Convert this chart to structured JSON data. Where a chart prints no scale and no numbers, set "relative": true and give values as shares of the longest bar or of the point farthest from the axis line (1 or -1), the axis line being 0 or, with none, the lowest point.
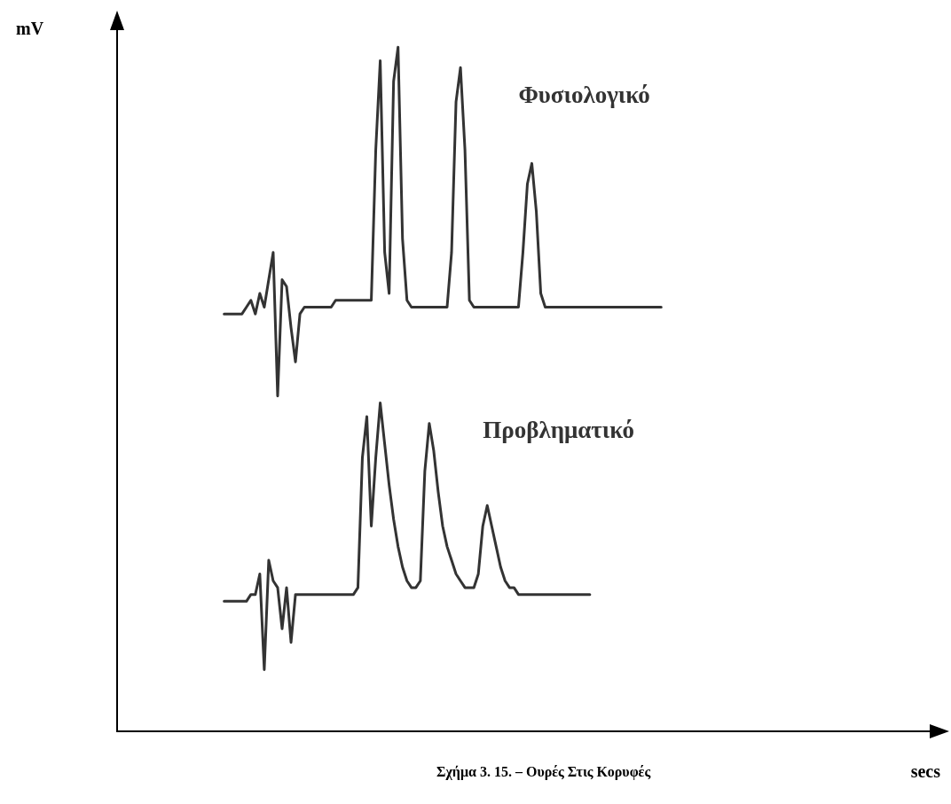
{
  "chart_data": {
    "type": "line",
    "relative": true,
    "xlabel": "secs",
    "ylabel": "mV",
    "tick_labels": false,
    "grid": false,
    "legend": false,
    "line_style": "solid",
    "annotations": [
      "Σχήμα 3. 15. – Ουρές Στις Κορυφές"
    ],
    "categories": [
      null,
      null,
      null,
      null,
      null,
      null,
      null,
      null,
      null,
      null,
      null,
      null,
      null,
      null,
      null,
      null,
      null,
      null,
      null,
      null,
      null,
      null,
      null,
      null,
      null,
      null,
      null,
      null,
      null,
      null,
      null,
      null,
      null,
      null,
      null,
      null,
      null,
      null,
      null,
      null,
      null,
      null,
      null,
      null,
      null,
      null,
      null,
      null,
      null,
      null,
      null,
      null,
      null,
      null,
      null,
      null,
      null,
      null,
      null,
      null,
      null,
      null,
      null,
      null,
      null,
      null,
      null,
      null,
      null,
      null,
      null,
      null,
      null,
      null,
      null,
      null,
      null,
      null,
      null,
      null,
      null,
      null,
      null,
      null,
      null,
      null,
      null,
      null,
      null,
      null,
      null,
      null,
      null,
      null,
      null,
      null,
      null,
      null,
      null,
      null,
      null,
      null,
      null,
      null,
      null,
      null,
      null,
      null,
      null,
      null,
      null,
      null,
      null,
      null,
      null,
      null,
      null,
      null,
      null,
      null,
      null,
      null,
      null,
      null,
      null,
      null,
      null,
      null,
      null,
      null,
      null,
      null,
      null,
      null,
      null,
      null,
      null,
      null,
      null,
      null,
      null,
      null,
      null,
      null,
      null,
      null,
      null,
      null,
      null,
      null,
      null,
      null,
      null,
      null,
      null,
      null,
      null,
      null,
      null,
      null,
      null,
      null,
      null,
      null,
      null,
      null,
      null,
      null,
      null,
      null,
      null,
      null,
      null,
      null,
      null,
      null,
      null,
      null,
      null,
      null,
      null,
      null,
      null,
      null,
      null,
      null
    ],
    "series": [
      {
        "name": "Φυσιολογικό",
        "color": "#333333",
        "values": [
          null,
          null,
          null,
          null,
          null,
          null,
          null,
          null,
          null,
          null,
          null,
          null,
          null,
          null,
          null,
          null,
          null,
          null,
          null,
          null,
          null,
          null,
          null,
          null,
          0.61,
          0.61,
          0.61,
          0.61,
          0.61,
          0.62,
          0.63,
          0.61,
          0.64,
          0.62,
          0.66,
          0.7,
          0.49,
          0.66,
          0.65,
          0.59,
          0.54,
          0.61,
          0.62,
          0.62,
          0.62,
          0.62,
          0.62,
          0.62,
          0.62,
          0.63,
          0.63,
          0.63,
          0.63,
          0.63,
          0.63,
          0.63,
          0.63,
          0.63,
          0.85,
          0.98,
          0.7,
          0.64,
          0.95,
          1.0,
          0.72,
          0.63,
          0.62,
          0.62,
          0.62,
          0.62,
          0.62,
          0.62,
          0.62,
          0.62,
          0.62,
          0.7,
          0.92,
          0.97,
          0.85,
          0.63,
          0.62,
          0.62,
          0.62,
          0.62,
          0.62,
          0.62,
          0.62,
          0.62,
          0.62,
          0.62,
          0.62,
          0.7,
          0.8,
          0.83,
          0.76,
          0.64,
          0.62,
          0.62,
          0.62,
          0.62,
          0.62,
          0.62,
          0.62,
          0.62,
          0.62,
          0.62,
          0.62,
          0.62,
          0.62,
          0.62,
          0.62,
          0.62,
          0.62,
          0.62,
          0.62,
          0.62,
          0.62,
          0.62,
          0.62,
          0.62,
          0.62,
          0.62,
          0.62,
          null,
          null,
          null,
          null,
          null,
          null,
          null,
          null,
          null,
          null,
          null,
          null,
          null,
          null,
          null,
          null,
          null,
          null,
          null,
          null,
          null,
          null,
          null,
          null,
          null,
          null,
          null,
          null,
          null,
          null,
          null,
          null,
          null,
          null,
          null,
          null,
          null,
          null,
          null,
          null,
          null,
          null,
          null,
          null,
          null,
          null,
          null,
          null,
          null,
          null,
          null,
          null,
          null,
          null,
          null,
          null,
          null,
          null,
          null,
          null,
          null,
          null,
          null
        ]
      },
      {
        "name": "Προβληματικό",
        "color": "#333333",
        "values": [
          null,
          null,
          null,
          null,
          null,
          null,
          null,
          null,
          null,
          null,
          null,
          null,
          null,
          null,
          null,
          null,
          null,
          null,
          null,
          null,
          null,
          null,
          null,
          null,
          0.19,
          0.19,
          0.19,
          0.19,
          0.19,
          0.19,
          0.2,
          0.2,
          0.23,
          0.09,
          0.25,
          0.22,
          0.21,
          0.15,
          0.21,
          0.13,
          0.2,
          0.2,
          0.2,
          0.2,
          0.2,
          0.2,
          0.2,
          0.2,
          0.2,
          0.2,
          0.2,
          0.2,
          0.2,
          0.2,
          0.21,
          0.4,
          0.46,
          0.3,
          0.4,
          0.48,
          0.42,
          0.36,
          0.31,
          0.27,
          0.24,
          0.22,
          0.21,
          0.21,
          0.22,
          0.38,
          0.45,
          0.41,
          0.35,
          0.3,
          0.27,
          0.25,
          0.23,
          0.22,
          0.21,
          0.21,
          0.21,
          0.23,
          0.3,
          0.33,
          0.3,
          0.27,
          0.24,
          0.22,
          0.21,
          0.21,
          0.2,
          0.2,
          0.2,
          0.2,
          0.2,
          0.2,
          0.2,
          0.2,
          0.2,
          0.2,
          0.2,
          0.2,
          0.2,
          0.2,
          0.2,
          0.2,
          0.2,
          null,
          null,
          null,
          null,
          null,
          null,
          null,
          null,
          null,
          null,
          null,
          null,
          null,
          null,
          null,
          null,
          null,
          null,
          null,
          null,
          null,
          null,
          null,
          null,
          null,
          null,
          null,
          null,
          null,
          null,
          null,
          null,
          null,
          null,
          null,
          null,
          null,
          null,
          null,
          null,
          null,
          null,
          null,
          null,
          null,
          null,
          null,
          null,
          null,
          null,
          null,
          null,
          null,
          null,
          null,
          null,
          null,
          null,
          null,
          null,
          null,
          null,
          null,
          null,
          null,
          null,
          null,
          null,
          null,
          null,
          null,
          null,
          null,
          null,
          null,
          null,
          null,
          null,
          null
        ]
      }
    ]
  }
}
